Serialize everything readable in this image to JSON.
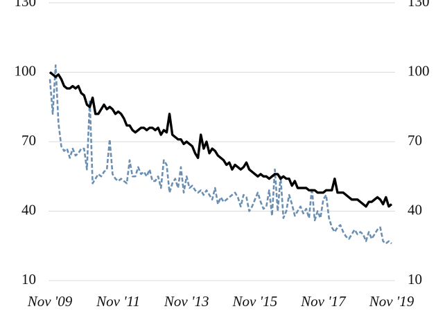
{
  "chart_data": {
    "type": "line",
    "categories": [
      "Nov '09",
      null,
      null,
      null,
      null,
      null,
      null,
      null,
      null,
      null,
      null,
      null,
      null,
      null,
      null,
      null,
      null,
      null,
      null,
      null,
      null,
      null,
      null,
      null,
      "Nov '11",
      null,
      null,
      null,
      null,
      null,
      null,
      null,
      null,
      null,
      null,
      null,
      null,
      null,
      null,
      null,
      null,
      null,
      null,
      null,
      null,
      null,
      null,
      null,
      "Nov '13",
      null,
      null,
      null,
      null,
      null,
      null,
      null,
      null,
      null,
      null,
      null,
      null,
      null,
      null,
      null,
      null,
      null,
      null,
      null,
      null,
      null,
      null,
      null,
      "Nov '15",
      null,
      null,
      null,
      null,
      null,
      null,
      null,
      null,
      null,
      null,
      null,
      null,
      null,
      null,
      null,
      null,
      null,
      null,
      null,
      null,
      null,
      null,
      null,
      "Nov '17",
      null,
      null,
      null,
      null,
      null,
      null,
      null,
      null,
      null,
      null,
      null,
      null,
      null,
      null,
      null,
      null,
      null,
      null,
      null,
      null,
      null,
      null,
      null,
      "Nov '19"
    ],
    "series": [
      {
        "color": "#000000",
        "dash": false,
        "values": [
          100,
          99,
          98,
          99,
          97,
          94,
          93,
          93,
          94,
          93,
          94,
          91,
          90,
          86,
          85,
          89,
          82,
          82,
          84,
          86,
          84,
          85,
          84,
          82,
          83,
          82,
          80,
          77,
          77,
          75,
          74,
          75,
          76,
          76,
          75,
          76,
          76,
          75,
          76,
          73,
          75,
          74,
          82,
          73,
          72,
          71,
          71,
          69,
          70,
          69,
          68,
          65,
          63,
          73,
          67,
          70,
          65,
          67,
          66,
          64,
          63,
          62,
          60,
          61,
          58,
          60,
          59,
          58,
          59,
          61,
          58,
          57,
          56,
          55,
          56,
          55,
          55,
          54,
          55,
          56,
          56,
          54,
          55,
          54,
          54,
          51,
          53,
          50,
          50,
          50,
          50,
          49,
          49,
          49,
          48,
          48,
          48,
          49,
          49,
          49,
          54,
          48,
          48,
          48,
          47,
          46,
          45,
          45,
          45,
          44,
          43,
          42,
          44,
          44,
          45,
          46,
          45,
          43,
          46,
          42,
          43
        ]
      },
      {
        "color": "#6a8fb3",
        "dash": true,
        "axis": "y2",
        "values": [
          97,
          82,
          103,
          78,
          68,
          66,
          67,
          63,
          67,
          64,
          65,
          67,
          67,
          58,
          88,
          52,
          54,
          56,
          55,
          57,
          58,
          71,
          56,
          54,
          53,
          54,
          53,
          52,
          62,
          55,
          55,
          59,
          56,
          57,
          55,
          58,
          53,
          53,
          55,
          50,
          62,
          60,
          48,
          52,
          54,
          50,
          59,
          48,
          55,
          50,
          51,
          49,
          48,
          49,
          47,
          49,
          47,
          45,
          50,
          43,
          46,
          44,
          45,
          46,
          47,
          48,
          46,
          42,
          47,
          46,
          40,
          42,
          45,
          48,
          44,
          41,
          42,
          49,
          38,
          58,
          40,
          55,
          37,
          40,
          47,
          43,
          38,
          40,
          42,
          39,
          41,
          37,
          50,
          36,
          40,
          37,
          45,
          47,
          37,
          33,
          31,
          33,
          34,
          31,
          29,
          28,
          30,
          32,
          30,
          31,
          30,
          27,
          31,
          28,
          30,
          32,
          33,
          27,
          26,
          27,
          26
        ]
      }
    ],
    "ylim": [
      10,
      130
    ],
    "yticks": [
      10,
      40,
      70,
      100,
      130
    ],
    "y2lim": [
      10,
      130
    ],
    "y2ticks": [
      10,
      40,
      70,
      100,
      130
    ],
    "grid": true
  }
}
